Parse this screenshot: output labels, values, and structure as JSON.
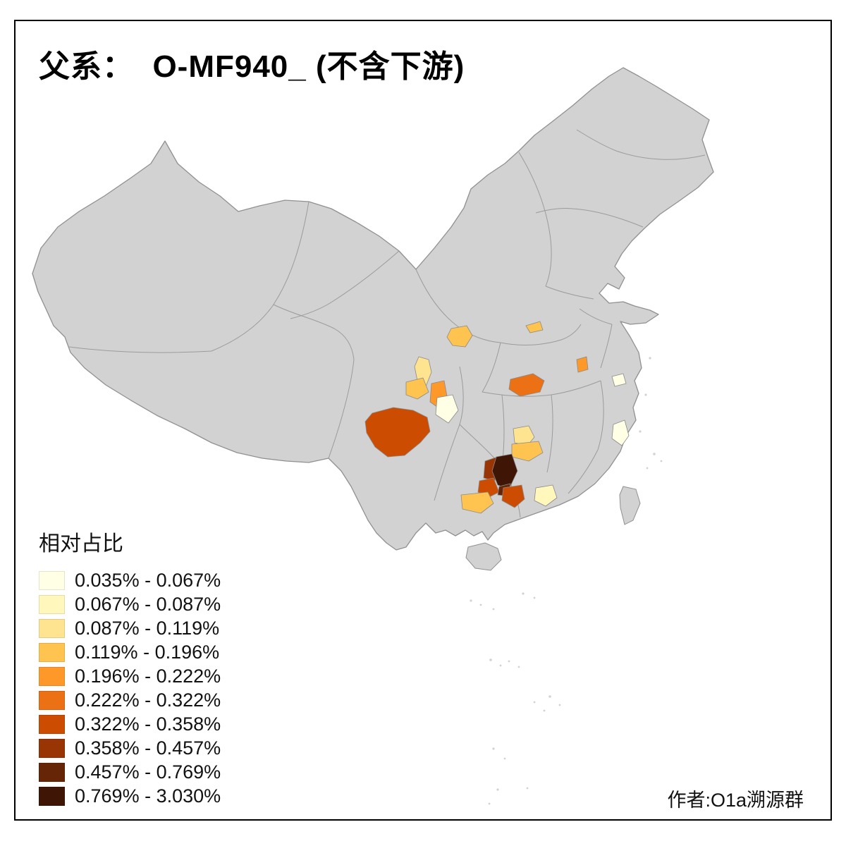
{
  "title": "父系：  O-MF940_ (不含下游)",
  "legend": {
    "title": "相对占比",
    "classes": [
      {
        "label": "0.035% - 0.067%",
        "color": "#FFFFE5"
      },
      {
        "label": "0.067% - 0.087%",
        "color": "#FFF7BC"
      },
      {
        "label": "0.087% - 0.119%",
        "color": "#FEE391"
      },
      {
        "label": "0.119% - 0.196%",
        "color": "#FEC44F"
      },
      {
        "label": "0.196% - 0.222%",
        "color": "#FE9929"
      },
      {
        "label": "0.222% - 0.322%",
        "color": "#EC7014"
      },
      {
        "label": "0.322% - 0.358%",
        "color": "#CC4C02"
      },
      {
        "label": "0.358% - 0.457%",
        "color": "#993404"
      },
      {
        "label": "0.457% - 0.769%",
        "color": "#662506"
      },
      {
        "label": "0.769% - 3.030%",
        "color": "#3F1605"
      }
    ]
  },
  "attribution": "作者:O1a溯源群",
  "map": {
    "base_fill": "#D2D2D2",
    "border_color": "#909090",
    "regions": [
      {
        "id": "r1",
        "class_index": 3
      },
      {
        "id": "r2",
        "class_index": 3
      },
      {
        "id": "r3",
        "class_index": 2
      },
      {
        "id": "r4",
        "class_index": 3
      },
      {
        "id": "r5",
        "class_index": 4
      },
      {
        "id": "r6",
        "class_index": 0
      },
      {
        "id": "r7",
        "class_index": 4
      },
      {
        "id": "r8",
        "class_index": 0
      },
      {
        "id": "r9",
        "class_index": 5
      },
      {
        "id": "r10",
        "class_index": 6
      },
      {
        "id": "r11",
        "class_index": 2
      },
      {
        "id": "r12",
        "class_index": 3
      },
      {
        "id": "r13",
        "class_index": 9
      },
      {
        "id": "r14",
        "class_index": 7
      },
      {
        "id": "r15",
        "class_index": 8
      },
      {
        "id": "r16",
        "class_index": 6
      },
      {
        "id": "r17",
        "class_index": 6
      },
      {
        "id": "r18",
        "class_index": 3
      },
      {
        "id": "r19",
        "class_index": 1
      },
      {
        "id": "r20",
        "class_index": 0
      }
    ]
  }
}
